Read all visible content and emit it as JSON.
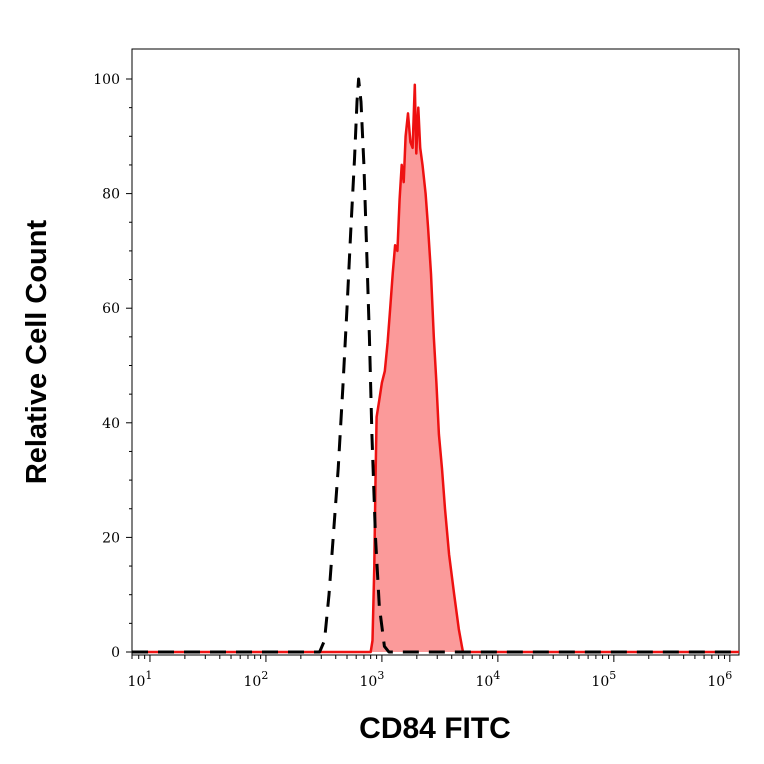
{
  "chart_data": {
    "type": "area",
    "title": "",
    "xlabel": "CD84 FITC",
    "ylabel": "Relative Cell Count",
    "x_scale": "log",
    "xlim": [
      7,
      1200000
    ],
    "ylim": [
      0,
      100
    ],
    "y_ticks": [
      0,
      20,
      40,
      60,
      80,
      100
    ],
    "y_tick_labels": [
      "0",
      "20",
      "40",
      "60",
      "80",
      "100"
    ],
    "x_ticks": [
      {
        "value": 10,
        "base": "10",
        "exp": "1"
      },
      {
        "value": 100,
        "base": "10",
        "exp": "2"
      },
      {
        "value": 1000,
        "base": "10",
        "exp": "3"
      },
      {
        "value": 10000,
        "base": "10",
        "exp": "4"
      },
      {
        "value": 100000,
        "base": "10",
        "exp": "5"
      },
      {
        "value": 1000000,
        "base": "10",
        "exp": "6"
      }
    ],
    "grid": false,
    "series": [
      {
        "style": "dashed",
        "color": "#000000",
        "fill": "none",
        "points": [
          [
            7,
            0
          ],
          [
            290,
            0
          ],
          [
            320,
            2
          ],
          [
            350,
            10
          ],
          [
            380,
            20
          ],
          [
            420,
            32
          ],
          [
            460,
            46
          ],
          [
            500,
            60
          ],
          [
            540,
            74
          ],
          [
            580,
            86
          ],
          [
            610,
            96
          ],
          [
            630,
            100
          ],
          [
            660,
            96
          ],
          [
            700,
            85
          ],
          [
            740,
            70
          ],
          [
            780,
            55
          ],
          [
            820,
            38
          ],
          [
            880,
            20
          ],
          [
            950,
            8
          ],
          [
            1050,
            1
          ],
          [
            1150,
            0
          ],
          [
            1200000,
            0
          ]
        ]
      },
      {
        "style": "solid",
        "color": "#ee1111",
        "fill": "#fb9a9a",
        "points": [
          [
            7,
            0
          ],
          [
            800,
            0
          ],
          [
            830,
            2
          ],
          [
            860,
            15
          ],
          [
            880,
            30
          ],
          [
            900,
            41
          ],
          [
            950,
            44
          ],
          [
            1000,
            47
          ],
          [
            1060,
            49
          ],
          [
            1120,
            54
          ],
          [
            1180,
            60
          ],
          [
            1240,
            66
          ],
          [
            1300,
            71
          ],
          [
            1360,
            70
          ],
          [
            1420,
            79
          ],
          [
            1480,
            85
          ],
          [
            1540,
            82
          ],
          [
            1600,
            90
          ],
          [
            1680,
            94
          ],
          [
            1760,
            89
          ],
          [
            1840,
            88
          ],
          [
            1920,
            99
          ],
          [
            1980,
            87
          ],
          [
            2060,
            95
          ],
          [
            2140,
            88
          ],
          [
            2240,
            85
          ],
          [
            2380,
            80
          ],
          [
            2500,
            74
          ],
          [
            2650,
            66
          ],
          [
            2800,
            55
          ],
          [
            2950,
            47
          ],
          [
            3100,
            38
          ],
          [
            3300,
            32
          ],
          [
            3500,
            25
          ],
          [
            3800,
            17
          ],
          [
            4200,
            10
          ],
          [
            4600,
            4
          ],
          [
            4900,
            1
          ],
          [
            5000,
            0
          ],
          [
            1200000,
            0
          ]
        ]
      }
    ]
  }
}
